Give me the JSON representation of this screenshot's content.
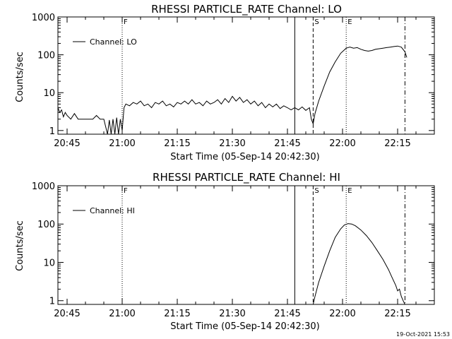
{
  "footer": {
    "timestamp": "19-Oct-2021 15:53"
  },
  "chart_data": [
    {
      "type": "line",
      "title": "RHESSI PARTICLE_RATE Channel: LO",
      "xlabel": "Start Time (05-Sep-14 20:42:30)",
      "ylabel": "Counts/sec",
      "yscale": "log",
      "xlim": [
        "20:42:30",
        "22:25:00"
      ],
      "ylim": [
        0.8,
        1000
      ],
      "xticks": [
        "20:45",
        "21:00",
        "21:15",
        "21:30",
        "21:45",
        "22:00",
        "22:15"
      ],
      "yticks": [
        {
          "value": 1,
          "label": "1"
        },
        {
          "value": 10,
          "label": "10"
        },
        {
          "value": 100,
          "label": "100"
        },
        {
          "value": 1000,
          "label": "1000"
        }
      ],
      "legend": {
        "position": "top-left",
        "label": "Channel: LO"
      },
      "markers": [
        {
          "time": "21:00",
          "style": "dotted",
          "label": "F"
        },
        {
          "time": "21:47",
          "style": "solid",
          "label": ""
        },
        {
          "time": "21:52",
          "style": "dashed",
          "label": "S"
        },
        {
          "time": "22:01",
          "style": "dotted",
          "label": "E"
        },
        {
          "time": "22:17",
          "style": "dashdot",
          "label": ""
        }
      ],
      "series": [
        {
          "name": "Channel: LO",
          "points": [
            [
              "20:42:30",
              4.0
            ],
            [
              "20:43:00",
              3.0
            ],
            [
              "20:43:30",
              3.5
            ],
            [
              "20:44:00",
              2.3
            ],
            [
              "20:44:30",
              3.0
            ],
            [
              "20:45:00",
              2.5
            ],
            [
              "20:46:00",
              2.0
            ],
            [
              "20:47:00",
              2.8
            ],
            [
              "20:48:00",
              2.0
            ],
            [
              "20:49:00",
              2.0
            ],
            [
              "20:50:00",
              2.0
            ],
            [
              "20:51:00",
              2.0
            ],
            [
              "20:52:00",
              2.0
            ],
            [
              "20:53:00",
              2.5
            ],
            [
              "20:54:00",
              2.0
            ],
            [
              "20:55:00",
              2.0
            ],
            [
              "20:56:00",
              0.8
            ],
            [
              "20:56:30",
              1.9
            ],
            [
              "20:57:00",
              0.8
            ],
            [
              "20:57:30",
              2.0
            ],
            [
              "20:58:00",
              0.8
            ],
            [
              "20:58:30",
              2.2
            ],
            [
              "20:59:00",
              0.8
            ],
            [
              "20:59:30",
              2.0
            ],
            [
              "21:00:00",
              1.0
            ],
            [
              "21:00:30",
              4.0
            ],
            [
              "21:01:00",
              5.0
            ],
            [
              "21:02:00",
              4.5
            ],
            [
              "21:03:00",
              5.5
            ],
            [
              "21:04:00",
              5.0
            ],
            [
              "21:05:00",
              6.0
            ],
            [
              "21:06:00",
              4.5
            ],
            [
              "21:07:00",
              5.0
            ],
            [
              "21:08:00",
              4.0
            ],
            [
              "21:09:00",
              5.5
            ],
            [
              "21:10:00",
              5.0
            ],
            [
              "21:11:00",
              6.0
            ],
            [
              "21:12:00",
              4.5
            ],
            [
              "21:13:00",
              5.0
            ],
            [
              "21:14:00",
              4.2
            ],
            [
              "21:15:00",
              5.5
            ],
            [
              "21:16:00",
              5.0
            ],
            [
              "21:17:00",
              6.0
            ],
            [
              "21:18:00",
              5.0
            ],
            [
              "21:19:00",
              6.5
            ],
            [
              "21:20:00",
              5.0
            ],
            [
              "21:21:00",
              5.5
            ],
            [
              "21:22:00",
              4.5
            ],
            [
              "21:23:00",
              6.0
            ],
            [
              "21:24:00",
              5.0
            ],
            [
              "21:25:00",
              5.5
            ],
            [
              "21:26:00",
              6.5
            ],
            [
              "21:27:00",
              5.0
            ],
            [
              "21:28:00",
              7.0
            ],
            [
              "21:29:00",
              5.5
            ],
            [
              "21:30:00",
              8.0
            ],
            [
              "21:31:00",
              6.0
            ],
            [
              "21:32:00",
              7.5
            ],
            [
              "21:33:00",
              5.5
            ],
            [
              "21:34:00",
              6.5
            ],
            [
              "21:35:00",
              5.0
            ],
            [
              "21:36:00",
              6.0
            ],
            [
              "21:37:00",
              4.5
            ],
            [
              "21:38:00",
              5.5
            ],
            [
              "21:39:00",
              4.0
            ],
            [
              "21:40:00",
              5.0
            ],
            [
              "21:41:00",
              4.2
            ],
            [
              "21:42:00",
              5.0
            ],
            [
              "21:43:00",
              3.8
            ],
            [
              "21:44:00",
              4.5
            ],
            [
              "21:45:00",
              4.0
            ],
            [
              "21:46:00",
              3.5
            ],
            [
              "21:47:00",
              4.0
            ],
            [
              "21:48:00",
              3.5
            ],
            [
              "21:49:00",
              4.2
            ],
            [
              "21:50:00",
              3.4
            ],
            [
              "21:51:00",
              4.0
            ],
            [
              "21:51:30",
              2.0
            ],
            [
              "21:52:00",
              1.5
            ],
            [
              "21:52:30",
              2.8
            ],
            [
              "21:53:30",
              6.0
            ],
            [
              "21:55:00",
              15.0
            ],
            [
              "21:56:30",
              35.0
            ],
            [
              "21:58:00",
              65.0
            ],
            [
              "21:59:30",
              110.0
            ],
            [
              "22:01:00",
              150.0
            ],
            [
              "22:02:00",
              160.0
            ],
            [
              "22:03:00",
              150.0
            ],
            [
              "22:04:00",
              155.0
            ],
            [
              "22:05:00",
              140.0
            ],
            [
              "22:06:00",
              130.0
            ],
            [
              "22:07:00",
              125.0
            ],
            [
              "22:08:00",
              130.0
            ],
            [
              "22:09:00",
              140.0
            ],
            [
              "22:10:00",
              145.0
            ],
            [
              "22:11:00",
              150.0
            ],
            [
              "22:12:00",
              155.0
            ],
            [
              "22:13:00",
              160.0
            ],
            [
              "22:14:00",
              165.0
            ],
            [
              "22:15:00",
              170.0
            ],
            [
              "22:16:00",
              160.0
            ],
            [
              "22:17:00",
              120.0
            ],
            [
              "22:17:30",
              85.0
            ]
          ]
        }
      ]
    },
    {
      "type": "line",
      "title": "RHESSI PARTICLE_RATE Channel: HI",
      "xlabel": "Start Time (05-Sep-14 20:42:30)",
      "ylabel": "Counts/sec",
      "yscale": "log",
      "xlim": [
        "20:42:30",
        "22:25:00"
      ],
      "ylim": [
        0.8,
        1000
      ],
      "xticks": [
        "20:45",
        "21:00",
        "21:15",
        "21:30",
        "21:45",
        "22:00",
        "22:15"
      ],
      "yticks": [
        {
          "value": 1,
          "label": "1"
        },
        {
          "value": 10,
          "label": "10"
        },
        {
          "value": 100,
          "label": "100"
        },
        {
          "value": 1000,
          "label": "1000"
        }
      ],
      "legend": {
        "position": "top-left",
        "label": "Channel: HI"
      },
      "markers": [
        {
          "time": "21:00",
          "style": "dotted",
          "label": "F"
        },
        {
          "time": "21:47",
          "style": "solid",
          "label": ""
        },
        {
          "time": "21:52",
          "style": "dashed",
          "label": "S"
        },
        {
          "time": "22:01",
          "style": "dotted",
          "label": "E"
        },
        {
          "time": "22:17",
          "style": "dashdot",
          "label": ""
        }
      ],
      "series": [
        {
          "name": "Channel: HI",
          "points": [
            [
              "21:52:00",
              0.8
            ],
            [
              "21:52:30",
              1.3
            ],
            [
              "21:53:30",
              3.0
            ],
            [
              "21:55:00",
              8.0
            ],
            [
              "21:56:30",
              20.0
            ],
            [
              "21:58:00",
              45.0
            ],
            [
              "21:59:30",
              75.0
            ],
            [
              "22:00:30",
              95.0
            ],
            [
              "22:01:30",
              103.0
            ],
            [
              "22:02:30",
              100.0
            ],
            [
              "22:03:30",
              90.0
            ],
            [
              "22:05:00",
              70.0
            ],
            [
              "22:06:30",
              50.0
            ],
            [
              "22:08:00",
              33.0
            ],
            [
              "22:09:30",
              20.0
            ],
            [
              "22:11:00",
              12.0
            ],
            [
              "22:12:30",
              6.5
            ],
            [
              "22:13:30",
              4.0
            ],
            [
              "22:14:30",
              2.5
            ],
            [
              "22:15:00",
              1.8
            ],
            [
              "22:15:30",
              2.0
            ],
            [
              "22:16:00",
              1.3
            ],
            [
              "22:16:30",
              1.0
            ],
            [
              "22:17:00",
              0.8
            ]
          ]
        }
      ]
    }
  ]
}
